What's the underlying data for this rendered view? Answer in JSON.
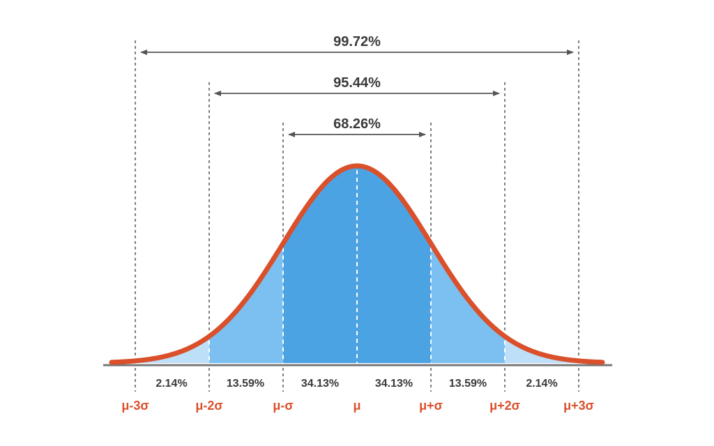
{
  "colors": {
    "curve": "#d9502b",
    "inner_fill": "#4ba3e3",
    "middle_fill": "#7cc0f1",
    "outer_fill": "#bedff8",
    "guide": "#555555",
    "axis": "#777777",
    "sigma_label": "#d9502b"
  },
  "ranges": [
    {
      "label": "99.72%",
      "from_sigma": -3,
      "to_sigma": 3
    },
    {
      "label": "95.44%",
      "from_sigma": -2,
      "to_sigma": 2
    },
    {
      "label": "68.26%",
      "from_sigma": -1,
      "to_sigma": 1
    }
  ],
  "segments": [
    {
      "label": "2.14%"
    },
    {
      "label": "13.59%"
    },
    {
      "label": "34.13%"
    },
    {
      "label": "34.13%"
    },
    {
      "label": "13.59%"
    },
    {
      "label": "2.14%"
    }
  ],
  "sigma_labels": [
    "μ-3σ",
    "μ-2σ",
    "μ-σ",
    "μ",
    "μ+σ",
    "μ+2σ",
    "μ+3σ"
  ]
}
